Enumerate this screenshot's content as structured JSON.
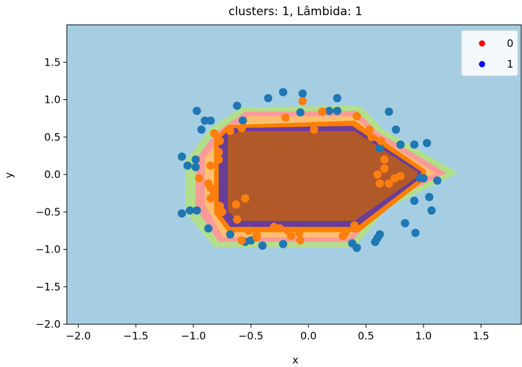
{
  "chart_data": {
    "type": "scatter",
    "title": "clusters: 1, Lâmbida: 1",
    "xlabel": "x",
    "ylabel": "y",
    "xlim": [
      -2.1,
      1.85
    ],
    "ylim": [
      -2.0,
      2.0
    ],
    "xticks": [
      -2.0,
      -1.5,
      -1.0,
      -0.5,
      0.0,
      0.5,
      1.0,
      1.5
    ],
    "xtick_labels": [
      "−2.0",
      "−1.5",
      "−1.0",
      "−0.5",
      "0.0",
      "0.5",
      "1.0",
      "1.5"
    ],
    "yticks": [
      -2.0,
      -1.5,
      -1.0,
      -0.5,
      0.0,
      0.5,
      1.0,
      1.5
    ],
    "ytick_labels": [
      "−2.0",
      "−1.5",
      "−1.0",
      "−0.5",
      "0.0",
      "0.5",
      "1.0",
      "1.5"
    ],
    "grid": false,
    "background_color": "#a6cee3",
    "legend": {
      "placement": "top-right",
      "entries": [
        {
          "label": "0",
          "color": "#ff0000"
        },
        {
          "label": "1",
          "color": "#0000ff"
        }
      ]
    },
    "decision_regions": [
      {
        "color": "#b2df8a",
        "polygon": [
          [
            -1.07,
            -0.45
          ],
          [
            -1.07,
            0.18
          ],
          [
            -0.85,
            0.62
          ],
          [
            -0.58,
            0.9
          ],
          [
            0.45,
            0.92
          ],
          [
            0.65,
            0.6
          ],
          [
            1.3,
            0.02
          ],
          [
            0.68,
            -0.45
          ],
          [
            0.4,
            -0.97
          ],
          [
            -0.82,
            -0.97
          ],
          [
            -1.07,
            -0.5
          ]
        ]
      },
      {
        "color": "#fb9a99",
        "polygon": [
          [
            -0.98,
            -0.42
          ],
          [
            -0.98,
            0.2
          ],
          [
            -0.8,
            0.57
          ],
          [
            -0.55,
            0.84
          ],
          [
            0.42,
            0.85
          ],
          [
            0.6,
            0.57
          ],
          [
            1.2,
            0.02
          ],
          [
            0.62,
            -0.42
          ],
          [
            0.38,
            -0.9
          ],
          [
            -0.78,
            -0.9
          ],
          [
            -0.98,
            -0.45
          ]
        ]
      },
      {
        "color": "#fdbf6f",
        "polygon": [
          [
            -0.9,
            -0.38
          ],
          [
            -0.9,
            0.22
          ],
          [
            -0.75,
            0.52
          ],
          [
            -0.52,
            0.78
          ],
          [
            0.4,
            0.78
          ],
          [
            0.56,
            0.54
          ],
          [
            1.1,
            0.02
          ],
          [
            0.58,
            -0.38
          ],
          [
            0.36,
            -0.84
          ],
          [
            -0.74,
            -0.84
          ],
          [
            -0.9,
            -0.4
          ]
        ]
      },
      {
        "color": "#ff7f00",
        "polygon": [
          [
            -0.82,
            -0.52
          ],
          [
            -0.82,
            0.48
          ],
          [
            -0.7,
            0.66
          ],
          [
            0.4,
            0.72
          ],
          [
            1.02,
            0.06
          ],
          [
            1.02,
            -0.06
          ],
          [
            0.44,
            -0.77
          ],
          [
            -0.7,
            -0.77
          ]
        ]
      },
      {
        "color": "#6a3d9a",
        "polygon": [
          [
            -0.78,
            -0.5
          ],
          [
            -0.78,
            0.46
          ],
          [
            -0.68,
            0.62
          ],
          [
            0.38,
            0.65
          ],
          [
            0.98,
            0.04
          ],
          [
            0.98,
            -0.04
          ],
          [
            0.42,
            -0.7
          ],
          [
            -0.68,
            -0.7
          ]
        ]
      },
      {
        "color": "#b15928",
        "polygon": [
          [
            -0.7,
            -0.5
          ],
          [
            -0.7,
            0.5
          ],
          [
            -0.6,
            0.58
          ],
          [
            0.4,
            0.58
          ],
          [
            0.95,
            0.03
          ],
          [
            0.95,
            -0.03
          ],
          [
            0.4,
            -0.62
          ],
          [
            -0.6,
            -0.62
          ]
        ]
      }
    ],
    "series": [
      {
        "color": "#1f77b4",
        "points": [
          [
            -1.1,
            -0.52
          ],
          [
            -1.03,
            -0.48
          ],
          [
            -0.97,
            -0.48
          ],
          [
            -1.1,
            0.24
          ],
          [
            -1.05,
            0.12
          ],
          [
            -0.98,
            0.1
          ],
          [
            -0.98,
            0.2
          ],
          [
            -0.97,
            0.85
          ],
          [
            -0.93,
            0.6
          ],
          [
            -0.9,
            0.72
          ],
          [
            -0.87,
            -0.72
          ],
          [
            -0.85,
            0.72
          ],
          [
            -0.62,
            0.92
          ],
          [
            -0.68,
            -0.8
          ],
          [
            -0.55,
            -0.9
          ],
          [
            -0.5,
            -0.88
          ],
          [
            -0.4,
            -0.95
          ],
          [
            -0.57,
            0.72
          ],
          [
            -0.35,
            1.02
          ],
          [
            -0.22,
            1.1
          ],
          [
            -0.22,
            -0.93
          ],
          [
            -0.05,
            1.08
          ],
          [
            -0.07,
            0.83
          ],
          [
            0.18,
            0.85
          ],
          [
            0.25,
            0.85
          ],
          [
            0.25,
            1.02
          ],
          [
            0.38,
            -0.92
          ],
          [
            0.42,
            -0.98
          ],
          [
            0.58,
            -0.9
          ],
          [
            0.62,
            -0.8
          ],
          [
            0.6,
            -0.85
          ],
          [
            0.62,
            0.35
          ],
          [
            0.7,
            0.84
          ],
          [
            0.76,
            0.6
          ],
          [
            0.8,
            0.4
          ],
          [
            0.84,
            -0.65
          ],
          [
            0.92,
            0.4
          ],
          [
            0.93,
            -0.78
          ],
          [
            0.97,
            -0.05
          ],
          [
            1.0,
            -0.05
          ],
          [
            1.03,
            0.42
          ],
          [
            1.05,
            -0.3
          ],
          [
            1.07,
            -0.48
          ],
          [
            1.12,
            -0.08
          ],
          [
            0.92,
            -0.35
          ]
        ]
      },
      {
        "color": "#ff7f0e",
        "points": [
          [
            -0.95,
            -0.05
          ],
          [
            -0.87,
            -0.12
          ],
          [
            -0.85,
            -0.18
          ],
          [
            -0.85,
            -0.32
          ],
          [
            -0.85,
            0.12
          ],
          [
            -0.82,
            -0.25
          ],
          [
            -0.82,
            0.55
          ],
          [
            -0.78,
            0.2
          ],
          [
            -0.78,
            0.3
          ],
          [
            -0.77,
            -0.42
          ],
          [
            -0.77,
            0.45
          ],
          [
            -0.75,
            -0.5
          ],
          [
            -0.68,
            0.58
          ],
          [
            -0.63,
            -0.4
          ],
          [
            -0.62,
            -0.6
          ],
          [
            -0.58,
            -0.88
          ],
          [
            -0.58,
            0.62
          ],
          [
            -0.55,
            -0.32
          ],
          [
            -0.52,
            -0.75
          ],
          [
            -0.45,
            -0.8
          ],
          [
            -0.45,
            -0.84
          ],
          [
            -0.3,
            -0.7
          ],
          [
            -0.25,
            -0.72
          ],
          [
            -0.2,
            0.76
          ],
          [
            -0.18,
            -0.75
          ],
          [
            -0.15,
            -0.82
          ],
          [
            -0.08,
            -0.78
          ],
          [
            -0.07,
            -0.88
          ],
          [
            -0.05,
            0.98
          ],
          [
            0.05,
            0.6
          ],
          [
            0.12,
            0.84
          ],
          [
            0.3,
            -0.82
          ],
          [
            0.32,
            -0.78
          ],
          [
            0.4,
            -0.68
          ],
          [
            0.42,
            0.78
          ],
          [
            0.53,
            0.6
          ],
          [
            0.55,
            0.5
          ],
          [
            0.6,
            0.0
          ],
          [
            0.62,
            -0.12
          ],
          [
            0.63,
            0.45
          ],
          [
            0.66,
            0.08
          ],
          [
            0.66,
            0.2
          ],
          [
            0.7,
            -0.12
          ],
          [
            0.75,
            -0.05
          ],
          [
            0.8,
            -0.02
          ]
        ]
      }
    ]
  }
}
